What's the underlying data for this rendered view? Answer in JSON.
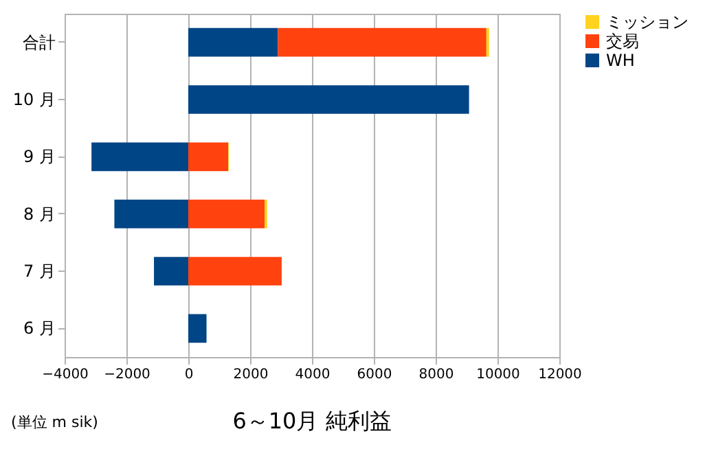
{
  "chart_data": {
    "type": "bar",
    "orientation": "horizontal",
    "stacked": true,
    "title": "6～10月 純利益",
    "annotations": [
      "(単位 m sik)"
    ],
    "categories": [
      "合計",
      "10 月",
      "9 月",
      "8 月",
      "7 月",
      "6 月"
    ],
    "series": [
      {
        "name": "WH",
        "color": "#004586",
        "values": [
          2900,
          9080,
          -3130,
          -2390,
          -1110,
          590
        ]
      },
      {
        "name": "交易",
        "color": "#ff420e",
        "values": [
          6740,
          null,
          1290,
          2470,
          3020,
          null
        ]
      },
      {
        "name": "ミッション",
        "color": "#ffd320",
        "values": [
          90,
          null,
          20,
          80,
          null,
          null
        ]
      }
    ],
    "xlim": [
      -4000,
      12000
    ],
    "xticks": [
      -4000,
      -2000,
      0,
      2000,
      4000,
      6000,
      8000,
      10000,
      12000
    ],
    "grid": "x",
    "legend": "right"
  }
}
